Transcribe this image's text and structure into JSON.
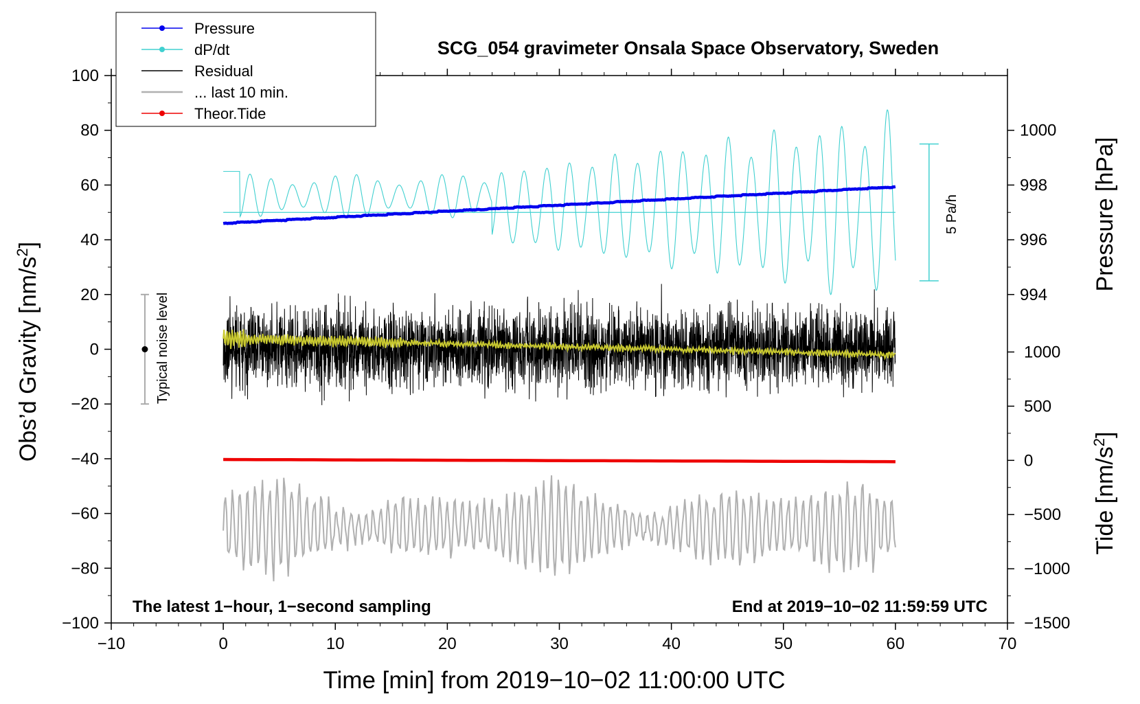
{
  "chart_data": {
    "type": "line",
    "title": "SCG_054 gravimeter Onsala Space Observatory, Sweden",
    "xlabel": "Time [min] from 2019−10−02 11:00:00 UTC",
    "ylabel_left_main": "Obs’d Gravity [nm/s",
    "ylabel_left_sup": "2",
    "ylabel_left_close": "]",
    "ylabel_right_pressure": "Pressure [hPa]",
    "ylabel_right_tide_main": "Tide [nm/s",
    "ylabel_right_tide_sup": "2",
    "ylabel_right_tide_close": "]",
    "xlim": [
      -10,
      70
    ],
    "ylim": [
      -100,
      100
    ],
    "pressure_lim": [
      994,
      1000
    ],
    "tide_lim": [
      -1500,
      1000
    ],
    "x_ticks": [
      "−10",
      "0",
      "10",
      "20",
      "30",
      "40",
      "50",
      "60",
      "70"
    ],
    "y_ticks": [
      "−100",
      "−80",
      "−60",
      "−40",
      "−20",
      "0",
      "20",
      "40",
      "60",
      "80",
      "100"
    ],
    "pressure_ticks": [
      "994",
      "996",
      "998",
      "1000"
    ],
    "tide_ticks": [
      "−1500",
      "−1000",
      "−500",
      "0",
      "500",
      "1000"
    ],
    "legend": [
      {
        "name": "Pressure",
        "color": "#0000ee",
        "marker": true
      },
      {
        "name": "dP/dt",
        "color": "#40d0d0",
        "marker": true
      },
      {
        "name": "Residual",
        "color": "#000000",
        "marker": false
      },
      {
        "name": "... last 10 min.",
        "color": "#b0b0b0",
        "marker": false
      },
      {
        "name": "Theor.Tide",
        "color": "#ee0000",
        "marker": true
      }
    ],
    "annotations": {
      "left_bottom": "The latest 1−hour, 1−second sampling",
      "right_bottom": "End at 2019−10−02 11:59:59 UTC",
      "noise_label": "Typical noise level",
      "dpdt_scale": "5 Pa/h"
    },
    "series": {
      "pressure": {
        "name": "Pressure",
        "unit": "hPa",
        "start": 996.6,
        "end": 997.93
      },
      "dpdt": {
        "name": "dP/dt",
        "baseline_gravity": 50,
        "amp_range_gravity": [
          6,
          40
        ]
      },
      "residual": {
        "name": "Residual",
        "unit": "nm/s2",
        "range": [
          -27,
          30
        ],
        "smoothed_start": 4,
        "smoothed_end": -2
      },
      "last10": {
        "name": "... last 10 min.",
        "center_gravity": -65,
        "amp_range_gravity": [
          5,
          20
        ]
      },
      "tide": {
        "name": "Theor.Tide",
        "unit": "nm/s2",
        "start": 8,
        "end": -12
      }
    },
    "noise_bar": {
      "x": -7,
      "center": 0,
      "half_range": 20
    },
    "dpdt_scale_bar": {
      "x": 63,
      "from": 25,
      "to": 75
    }
  }
}
